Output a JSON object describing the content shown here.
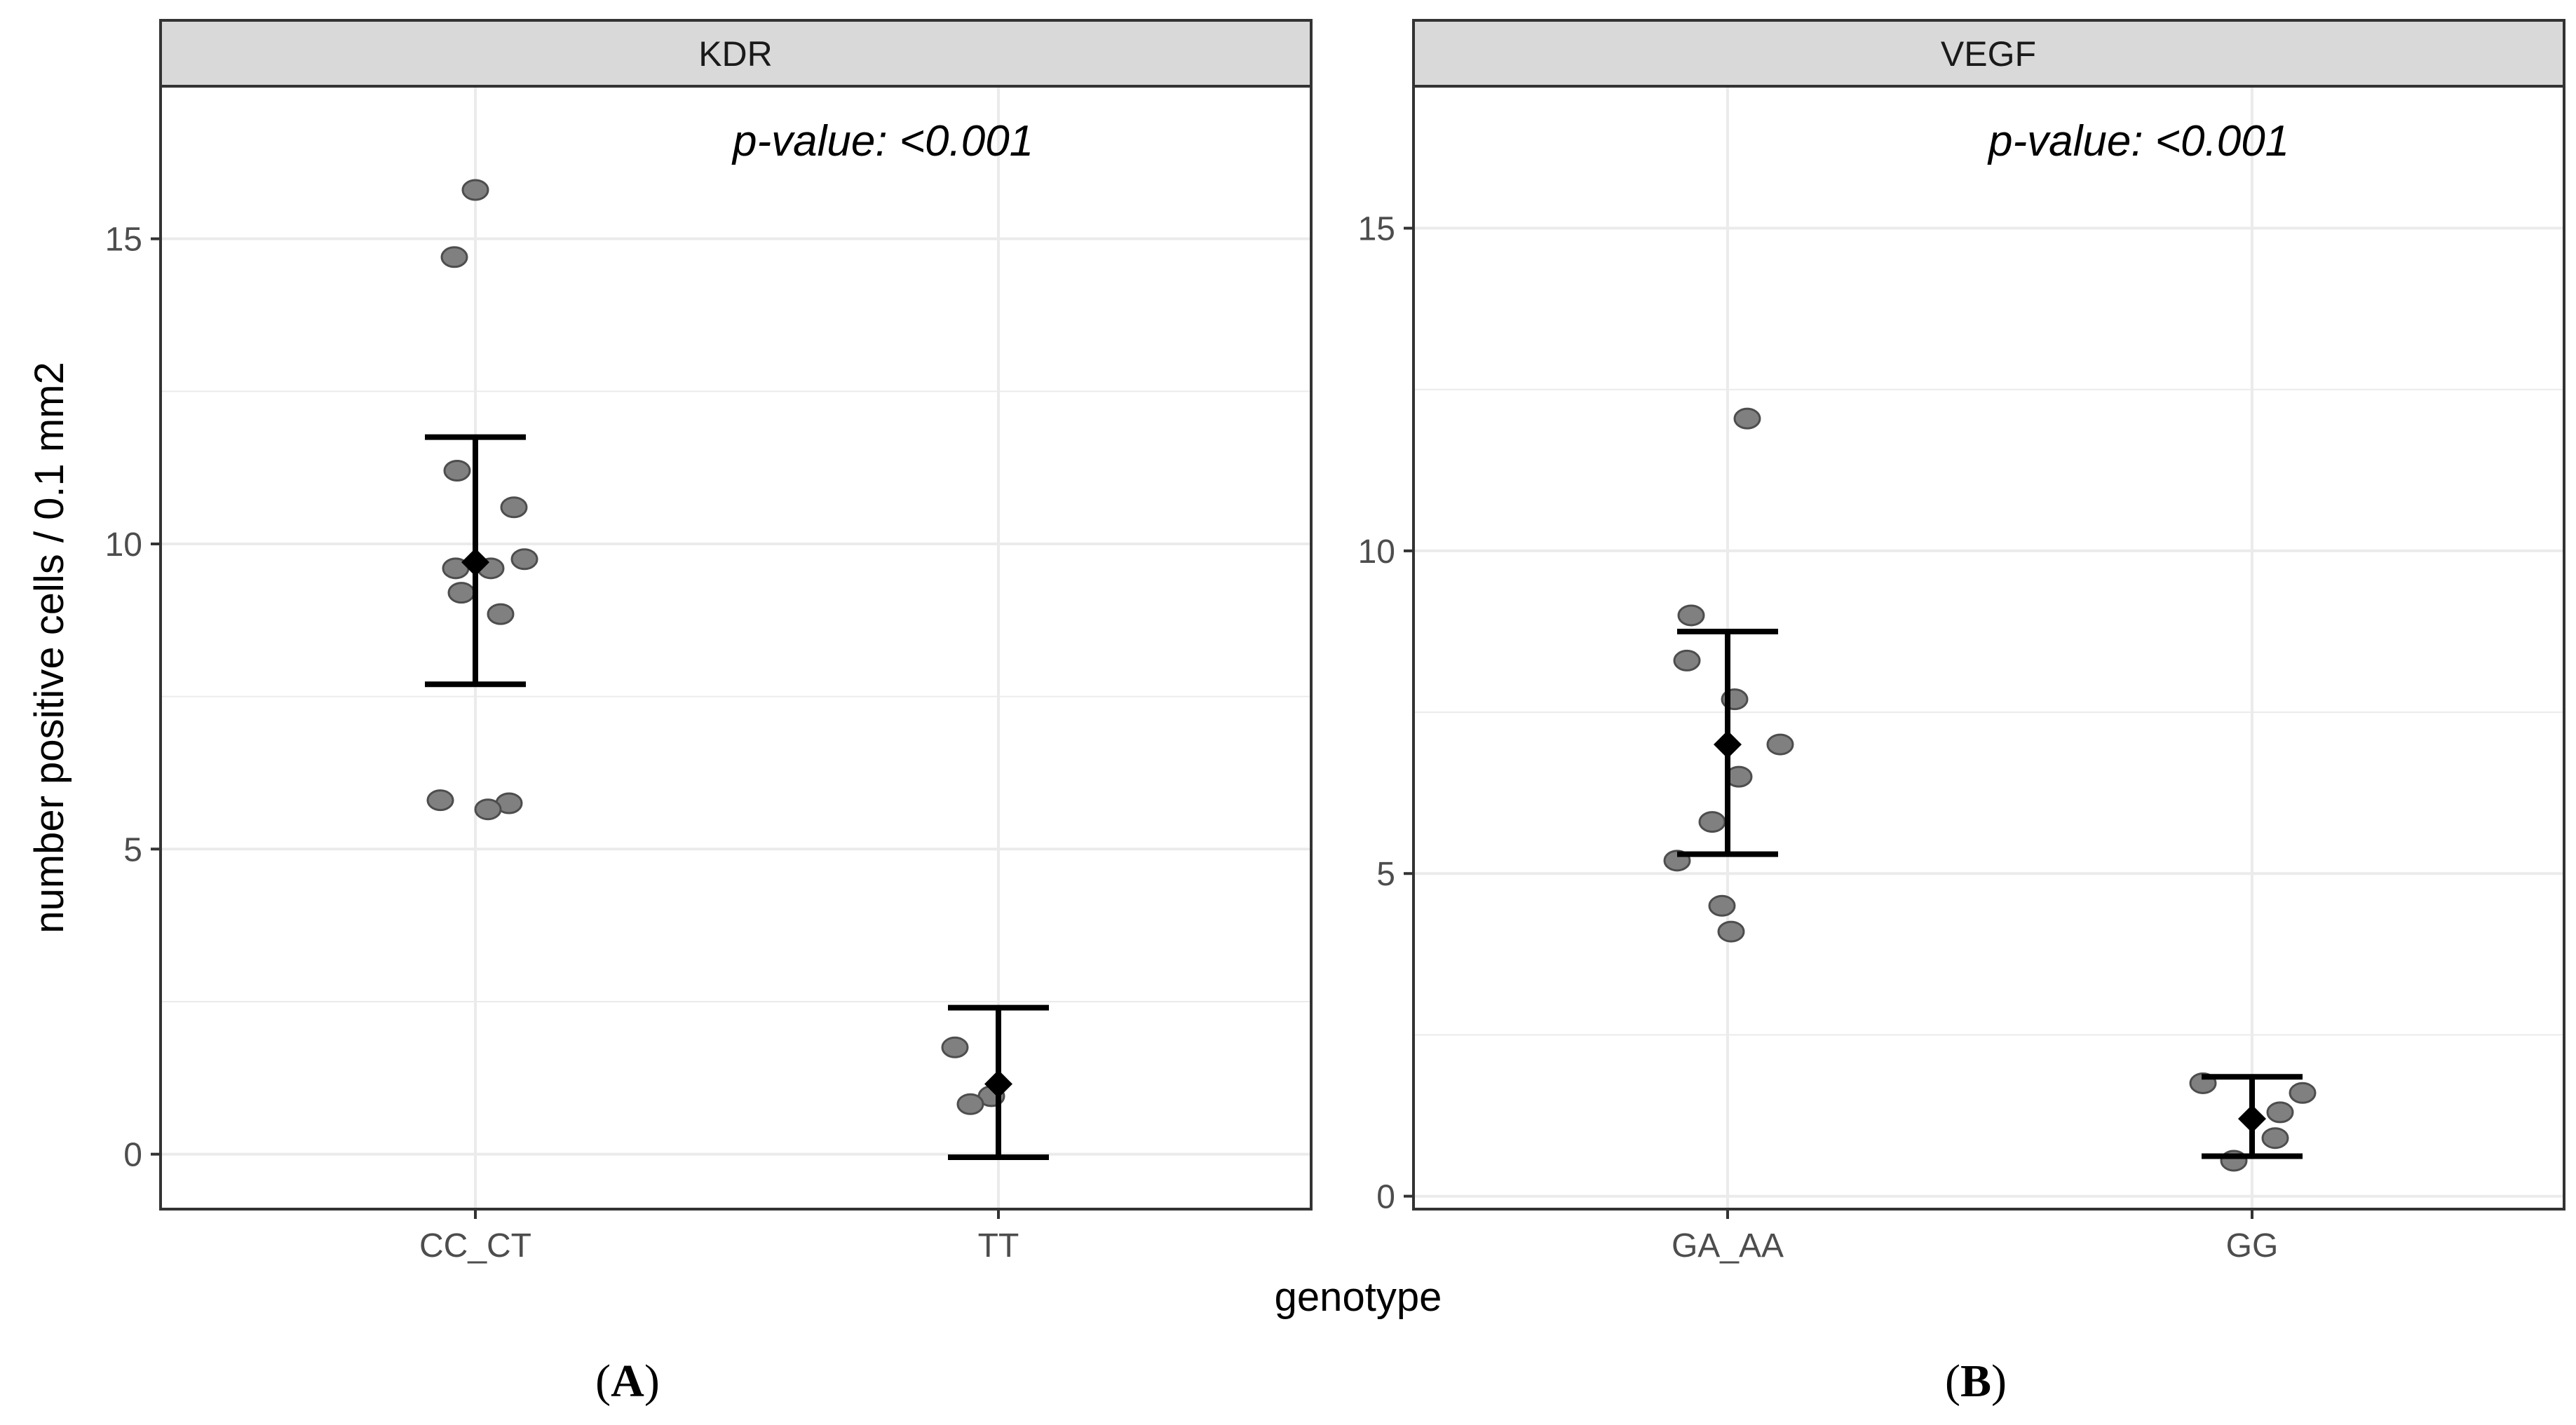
{
  "chart_data": [
    {
      "type": "scatter",
      "facet_label": "KDR",
      "panel_label": "A",
      "annotation": "p-value:  <0.001",
      "categories": [
        "CC_CT",
        "TT"
      ],
      "ylim": [
        -0.9,
        17.5
      ],
      "yticks": [
        0,
        5,
        10,
        15
      ],
      "points": [
        {
          "x": "CC_CT",
          "y": 15.8
        },
        {
          "x": "CC_CT",
          "y": 14.7
        },
        {
          "x": "CC_CT",
          "y": 11.2
        },
        {
          "x": "CC_CT",
          "y": 10.6
        },
        {
          "x": "CC_CT",
          "y": 9.75
        },
        {
          "x": "CC_CT",
          "y": 9.6
        },
        {
          "x": "CC_CT",
          "y": 9.6
        },
        {
          "x": "CC_CT",
          "y": 9.2
        },
        {
          "x": "CC_CT",
          "y": 8.85
        },
        {
          "x": "CC_CT",
          "y": 5.8
        },
        {
          "x": "CC_CT",
          "y": 5.75
        },
        {
          "x": "CC_CT",
          "y": 5.65
        },
        {
          "x": "TT",
          "y": 1.75
        },
        {
          "x": "TT",
          "y": 0.95
        },
        {
          "x": "TT",
          "y": 0.82
        }
      ],
      "summary": [
        {
          "x": "CC_CT",
          "mean": 9.7,
          "lower": 7.7,
          "upper": 11.75
        },
        {
          "x": "TT",
          "mean": 1.15,
          "lower": -0.05,
          "upper": 2.4
        }
      ],
      "grid": true
    },
    {
      "type": "scatter",
      "facet_label": "VEGF",
      "panel_label": "B",
      "annotation": "p-value:  <0.001",
      "categories": [
        "GA_AA",
        "GG"
      ],
      "ylim": [
        -0.2,
        17.2
      ],
      "yticks": [
        0,
        5,
        10,
        15
      ],
      "points": [
        {
          "x": "GA_AA",
          "y": 12.05
        },
        {
          "x": "GA_AA",
          "y": 9.0
        },
        {
          "x": "GA_AA",
          "y": 8.3
        },
        {
          "x": "GA_AA",
          "y": 7.7
        },
        {
          "x": "GA_AA",
          "y": 7.0
        },
        {
          "x": "GA_AA",
          "y": 6.5
        },
        {
          "x": "GA_AA",
          "y": 5.8
        },
        {
          "x": "GA_AA",
          "y": 5.2
        },
        {
          "x": "GA_AA",
          "y": 4.5
        },
        {
          "x": "GA_AA",
          "y": 4.1
        },
        {
          "x": "GG",
          "y": 1.75
        },
        {
          "x": "GG",
          "y": 1.6
        },
        {
          "x": "GG",
          "y": 1.3
        },
        {
          "x": "GG",
          "y": 0.9
        },
        {
          "x": "GG",
          "y": 0.55
        }
      ],
      "summary": [
        {
          "x": "GA_AA",
          "mean": 7.0,
          "lower": 5.3,
          "upper": 8.75
        },
        {
          "x": "GG",
          "mean": 1.2,
          "lower": 0.62,
          "upper": 1.85
        }
      ],
      "grid": true
    }
  ],
  "ylabel": "number positive cells / 0.1 mm2",
  "xlabel": "genotype",
  "colors": {
    "point_fill": "#808080",
    "point_stroke": "#4d4d4d",
    "strip_fill": "#d9d9d9",
    "grid": "#ebebeb",
    "summary": "#000000"
  }
}
